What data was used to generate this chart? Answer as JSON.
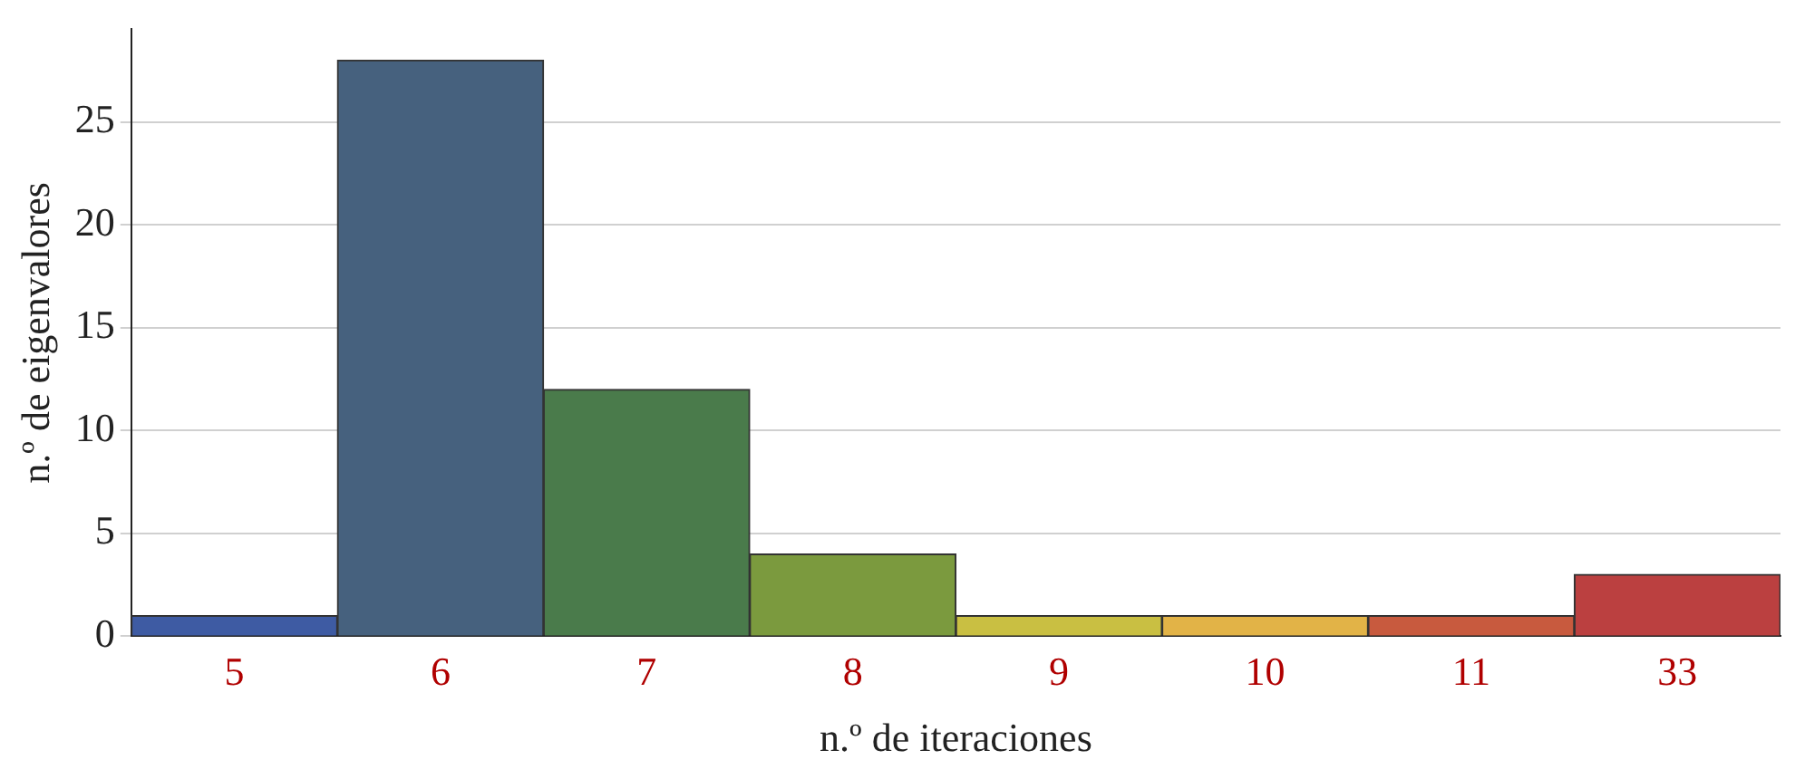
{
  "chart_data": {
    "type": "bar",
    "xlabel": "n.º de iteraciones",
    "ylabel": "n.º de eigenvalores",
    "categories": [
      "5",
      "6",
      "7",
      "8",
      "9",
      "10",
      "11",
      "33"
    ],
    "values": [
      1,
      28,
      12,
      4,
      1,
      1,
      1,
      3
    ],
    "colors": [
      "#3e5ba3",
      "#46617e",
      "#4a7b4b",
      "#7b9a3e",
      "#c9bf42",
      "#e2b347",
      "#c85a3e",
      "#bb4040"
    ],
    "ylim": [
      0,
      29.5
    ],
    "yticks": [
      0,
      5,
      10,
      15,
      20,
      25
    ],
    "grid": "y",
    "legend": false
  }
}
